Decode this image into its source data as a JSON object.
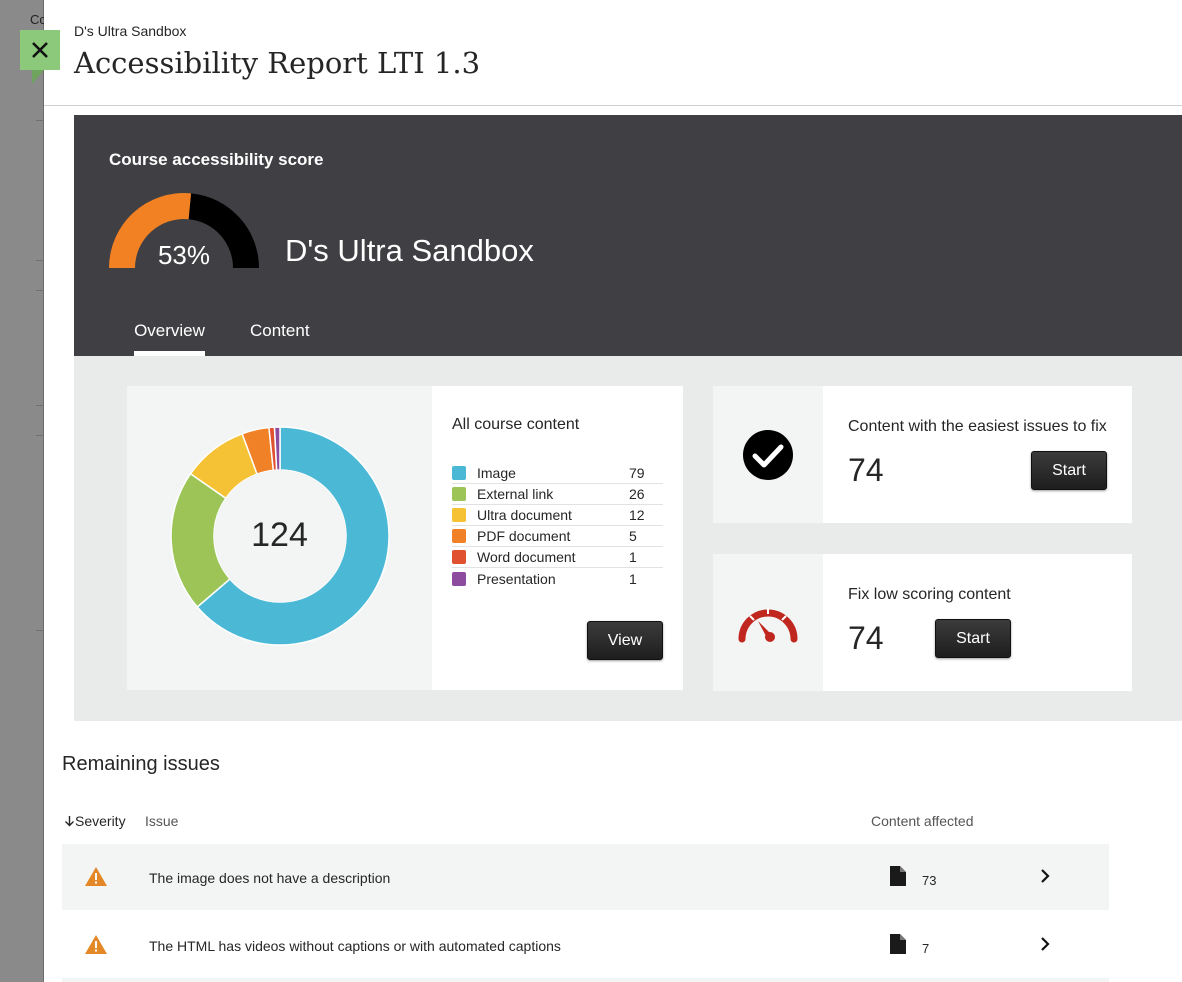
{
  "header": {
    "course_name": "D's Ultra Sandbox",
    "title": "Accessibility Report LTI 1.3"
  },
  "backdrop": {
    "text": "Co"
  },
  "close_button": {
    "icon": "close-icon"
  },
  "score": {
    "label": "Course accessibility score",
    "value_percent": 53,
    "value_text": "53%",
    "course_name": "D's Ultra Sandbox",
    "colors": {
      "filled": "#f18123",
      "remaining": "#000000"
    }
  },
  "tabs": [
    {
      "label": "Overview",
      "active": true
    },
    {
      "label": "Content",
      "active": false
    }
  ],
  "content_summary": {
    "total": "124",
    "title": "All course content",
    "items": [
      {
        "label": "Image",
        "count": "79",
        "value": 79,
        "color": "#4bb8d6"
      },
      {
        "label": "External link",
        "count": "26",
        "value": 26,
        "color": "#9cc457"
      },
      {
        "label": "Ultra document",
        "count": "12",
        "value": 12,
        "color": "#f5c235"
      },
      {
        "label": "PDF document",
        "count": "5",
        "value": 5,
        "color": "#f08127"
      },
      {
        "label": "Word document",
        "count": "1",
        "value": 1,
        "color": "#e0512f"
      },
      {
        "label": "Presentation",
        "count": "1",
        "value": 1,
        "color": "#8e4c9e"
      }
    ],
    "view_label": "View"
  },
  "fix_cards": {
    "easy": {
      "label": "Content with the easiest issues to fix",
      "count": "74",
      "button": "Start",
      "icon": "checkmark-circle-icon"
    },
    "low": {
      "label": "Fix low scoring content",
      "count": "74",
      "button": "Start",
      "icon": "speedometer-icon"
    }
  },
  "issues": {
    "title": "Remaining issues",
    "columns": {
      "severity": "Severity",
      "issue": "Issue",
      "affected": "Content affected"
    },
    "sort_icon": "arrow-down-icon",
    "rows": [
      {
        "text": "The image does not have a description",
        "count": "73",
        "severity_icon": "warning-icon",
        "content_icon": "document-icon"
      },
      {
        "text": "The HTML has videos without captions or with automated captions",
        "count": "7",
        "severity_icon": "warning-icon",
        "content_icon": "document-icon"
      }
    ]
  }
}
